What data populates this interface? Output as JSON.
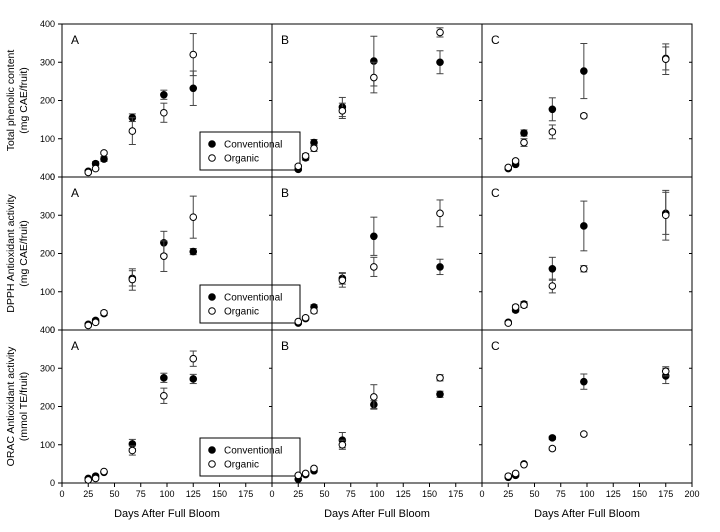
{
  "chart_data": {
    "type": "scatter",
    "grid": false,
    "legend": {
      "entries": [
        "Conventional",
        "Organic"
      ],
      "placement": "lower-right"
    },
    "x_ticks": [
      "0",
      "25",
      "50",
      "75",
      "100",
      "125",
      "150",
      "175",
      "200"
    ],
    "xlabel": "Days After Full Bloom",
    "rows": [
      {
        "ylabel_line1": "Total phenolic content",
        "ylabel_line2": "(mg CAE/fruit)",
        "ylim": [
          0,
          400
        ],
        "y_ticks": [
          "0",
          "100",
          "200",
          "300",
          "400"
        ],
        "legend_panel": 0,
        "panels": [
          {
            "label": "A",
            "xlim": [
              0,
              200
            ],
            "series": [
              {
                "name": "Conventional",
                "x": [
                  25,
                  32,
                  40,
                  67,
                  97,
                  125
                ],
                "y": [
                  15,
                  35,
                  47,
                  155,
                  215,
                  232
                ],
                "err": [
                  3,
                  5,
                  6,
                  10,
                  12,
                  45
                ]
              },
              {
                "name": "Organic",
                "x": [
                  25,
                  32,
                  40,
                  67,
                  97,
                  125
                ],
                "y": [
                  12,
                  22,
                  63,
                  120,
                  168,
                  320
                ],
                "err": [
                  2,
                  3,
                  4,
                  35,
                  25,
                  55
                ]
              }
            ]
          },
          {
            "label": "B",
            "xlim": [
              0,
              200
            ],
            "series": [
              {
                "name": "Conventional",
                "x": [
                  25,
                  32,
                  40,
                  67,
                  97,
                  160
                ],
                "y": [
                  20,
                  50,
                  90,
                  183,
                  303,
                  300
                ],
                "err": [
                  3,
                  6,
                  8,
                  25,
                  65,
                  30
                ]
              },
              {
                "name": "Organic",
                "x": [
                  25,
                  32,
                  40,
                  67,
                  97,
                  160
                ],
                "y": [
                  28,
                  55,
                  75,
                  173,
                  260,
                  378
                ],
                "err": [
                  4,
                  6,
                  8,
                  20,
                  40,
                  12
                ]
              }
            ]
          },
          {
            "label": "C",
            "xlim": [
              0,
              200
            ],
            "series": [
              {
                "name": "Conventional",
                "x": [
                  25,
                  32,
                  40,
                  67,
                  97,
                  175
                ],
                "y": [
                  22,
                  33,
                  115,
                  177,
                  277,
                  310
                ],
                "err": [
                  3,
                  4,
                  8,
                  30,
                  72,
                  30
                ]
              },
              {
                "name": "Organic",
                "x": [
                  25,
                  32,
                  40,
                  67,
                  97,
                  175
                ],
                "y": [
                  25,
                  42,
                  90,
                  118,
                  160,
                  308
                ],
                "err": [
                  3,
                  4,
                  10,
                  18,
                  5,
                  40
                ]
              }
            ]
          }
        ]
      },
      {
        "ylabel_line1": "DPPH Antioxidant activity",
        "ylabel_line2": "(mg CAE/fruit)",
        "ylim": [
          0,
          400
        ],
        "y_ticks": [
          "0",
          "100",
          "200",
          "300",
          "400"
        ],
        "legend_panel": 0,
        "panels": [
          {
            "label": "A",
            "xlim": [
              0,
              200
            ],
            "series": [
              {
                "name": "Conventional",
                "x": [
                  25,
                  32,
                  40,
                  67,
                  97,
                  125
                ],
                "y": [
                  15,
                  25,
                  43,
                  135,
                  228,
                  205
                ],
                "err": [
                  3,
                  4,
                  5,
                  20,
                  30,
                  8
                ]
              },
              {
                "name": "Organic",
                "x": [
                  25,
                  32,
                  40,
                  67,
                  97,
                  125
                ],
                "y": [
                  12,
                  20,
                  45,
                  132,
                  193,
                  295
                ],
                "err": [
                  2,
                  3,
                  5,
                  28,
                  40,
                  55
                ]
              }
            ]
          },
          {
            "label": "B",
            "xlim": [
              0,
              200
            ],
            "series": [
              {
                "name": "Conventional",
                "x": [
                  25,
                  32,
                  40,
                  67,
                  97,
                  160
                ],
                "y": [
                  18,
                  30,
                  60,
                  135,
                  245,
                  165
                ],
                "err": [
                  3,
                  4,
                  6,
                  15,
                  50,
                  20
                ]
              },
              {
                "name": "Organic",
                "x": [
                  25,
                  32,
                  40,
                  67,
                  97,
                  160
                ],
                "y": [
                  22,
                  32,
                  50,
                  130,
                  165,
                  305
                ],
                "err": [
                  3,
                  4,
                  6,
                  18,
                  25,
                  35
                ]
              }
            ]
          },
          {
            "label": "C",
            "xlim": [
              0,
              200
            ],
            "series": [
              {
                "name": "Conventional",
                "x": [
                  25,
                  32,
                  40,
                  67,
                  97,
                  175
                ],
                "y": [
                  20,
                  52,
                  68,
                  160,
                  272,
                  305
                ],
                "err": [
                  3,
                  5,
                  6,
                  30,
                  65,
                  55
                ]
              },
              {
                "name": "Organic",
                "x": [
                  25,
                  32,
                  40,
                  67,
                  97,
                  175
                ],
                "y": [
                  18,
                  60,
                  65,
                  115,
                  160,
                  300
                ],
                "err": [
                  3,
                  5,
                  6,
                  18,
                  8,
                  65
                ]
              }
            ]
          }
        ]
      },
      {
        "ylabel_line1": "ORAC Antioxidant activity",
        "ylabel_line2": "(mmol TE/fruit)",
        "ylim": [
          0,
          400
        ],
        "y_ticks": [
          "0",
          "100",
          "200",
          "300",
          "400"
        ],
        "legend_panel": 0,
        "panels": [
          {
            "label": "A",
            "xlim": [
              0,
              200
            ],
            "series": [
              {
                "name": "Conventional",
                "x": [
                  25,
                  32,
                  40,
                  67,
                  97,
                  125
                ],
                "y": [
                  12,
                  18,
                  28,
                  102,
                  275,
                  272
                ],
                "err": [
                  2,
                  3,
                  3,
                  12,
                  12,
                  12
                ]
              },
              {
                "name": "Organic",
                "x": [
                  25,
                  32,
                  40,
                  67,
                  97,
                  125
                ],
                "y": [
                  8,
                  12,
                  30,
                  85,
                  228,
                  325
                ],
                "err": [
                  2,
                  3,
                  3,
                  12,
                  20,
                  20
                ]
              }
            ]
          },
          {
            "label": "B",
            "xlim": [
              0,
              200
            ],
            "series": [
              {
                "name": "Conventional",
                "x": [
                  25,
                  32,
                  40,
                  67,
                  97,
                  160
                ],
                "y": [
                  10,
                  22,
                  32,
                  112,
                  205,
                  232
                ],
                "err": [
                  2,
                  3,
                  4,
                  20,
                  10,
                  8
                ]
              },
              {
                "name": "Organic",
                "x": [
                  25,
                  32,
                  40,
                  67,
                  97,
                  160
                ],
                "y": [
                  20,
                  25,
                  38,
                  100,
                  225,
                  275
                ],
                "err": [
                  3,
                  3,
                  4,
                  12,
                  32,
                  8
                ]
              }
            ]
          },
          {
            "label": "C",
            "xlim": [
              0,
              200
            ],
            "series": [
              {
                "name": "Conventional",
                "x": [
                  25,
                  32,
                  40,
                  67,
                  97,
                  175
                ],
                "y": [
                  15,
                  20,
                  50,
                  118,
                  265,
                  280
                ],
                "err": [
                  2,
                  3,
                  3,
                  4,
                  20,
                  20
                ]
              },
              {
                "name": "Organic",
                "x": [
                  25,
                  32,
                  40,
                  67,
                  97,
                  175
                ],
                "y": [
                  18,
                  25,
                  48,
                  90,
                  128,
                  292
                ],
                "err": [
                  2,
                  3,
                  3,
                  4,
                  4,
                  12
                ]
              }
            ]
          }
        ]
      }
    ]
  }
}
